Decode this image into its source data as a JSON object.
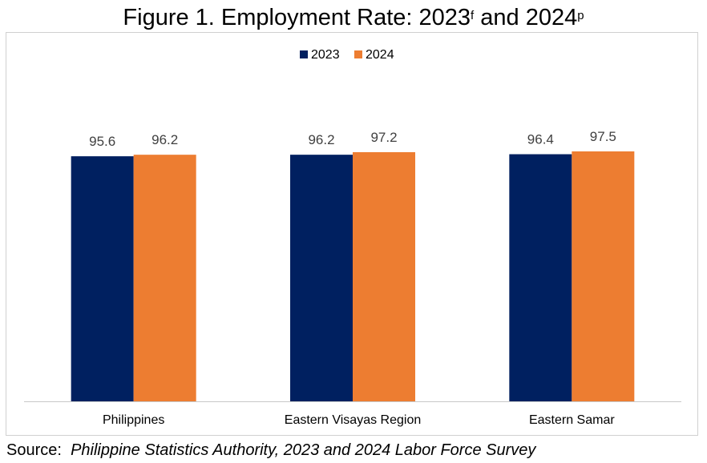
{
  "title": {
    "prefix": "Figure 1. Employment Rate: 2023",
    "sup1": "f",
    "middle": " and 2024",
    "sup2": "p"
  },
  "source": {
    "label": "Source:",
    "text": "Philippine Statistics Authority, 2023 and 2024 Labor Force Survey"
  },
  "colors": {
    "2023": "#002060",
    "2024": "#ED7D31",
    "axis": "#c8c8c8",
    "label": "#404040"
  },
  "chart_data": {
    "type": "bar",
    "categories": [
      "Philippines",
      "Eastern Visayas Region",
      "Eastern Samar"
    ],
    "series": [
      {
        "name": "2023",
        "values": [
          95.6,
          96.2,
          96.4
        ]
      },
      {
        "name": "2024",
        "values": [
          96.2,
          97.2,
          97.5
        ]
      }
    ],
    "ylim": [
      0,
      120
    ],
    "grid": false,
    "legend": "top-center",
    "data_labels": true
  }
}
